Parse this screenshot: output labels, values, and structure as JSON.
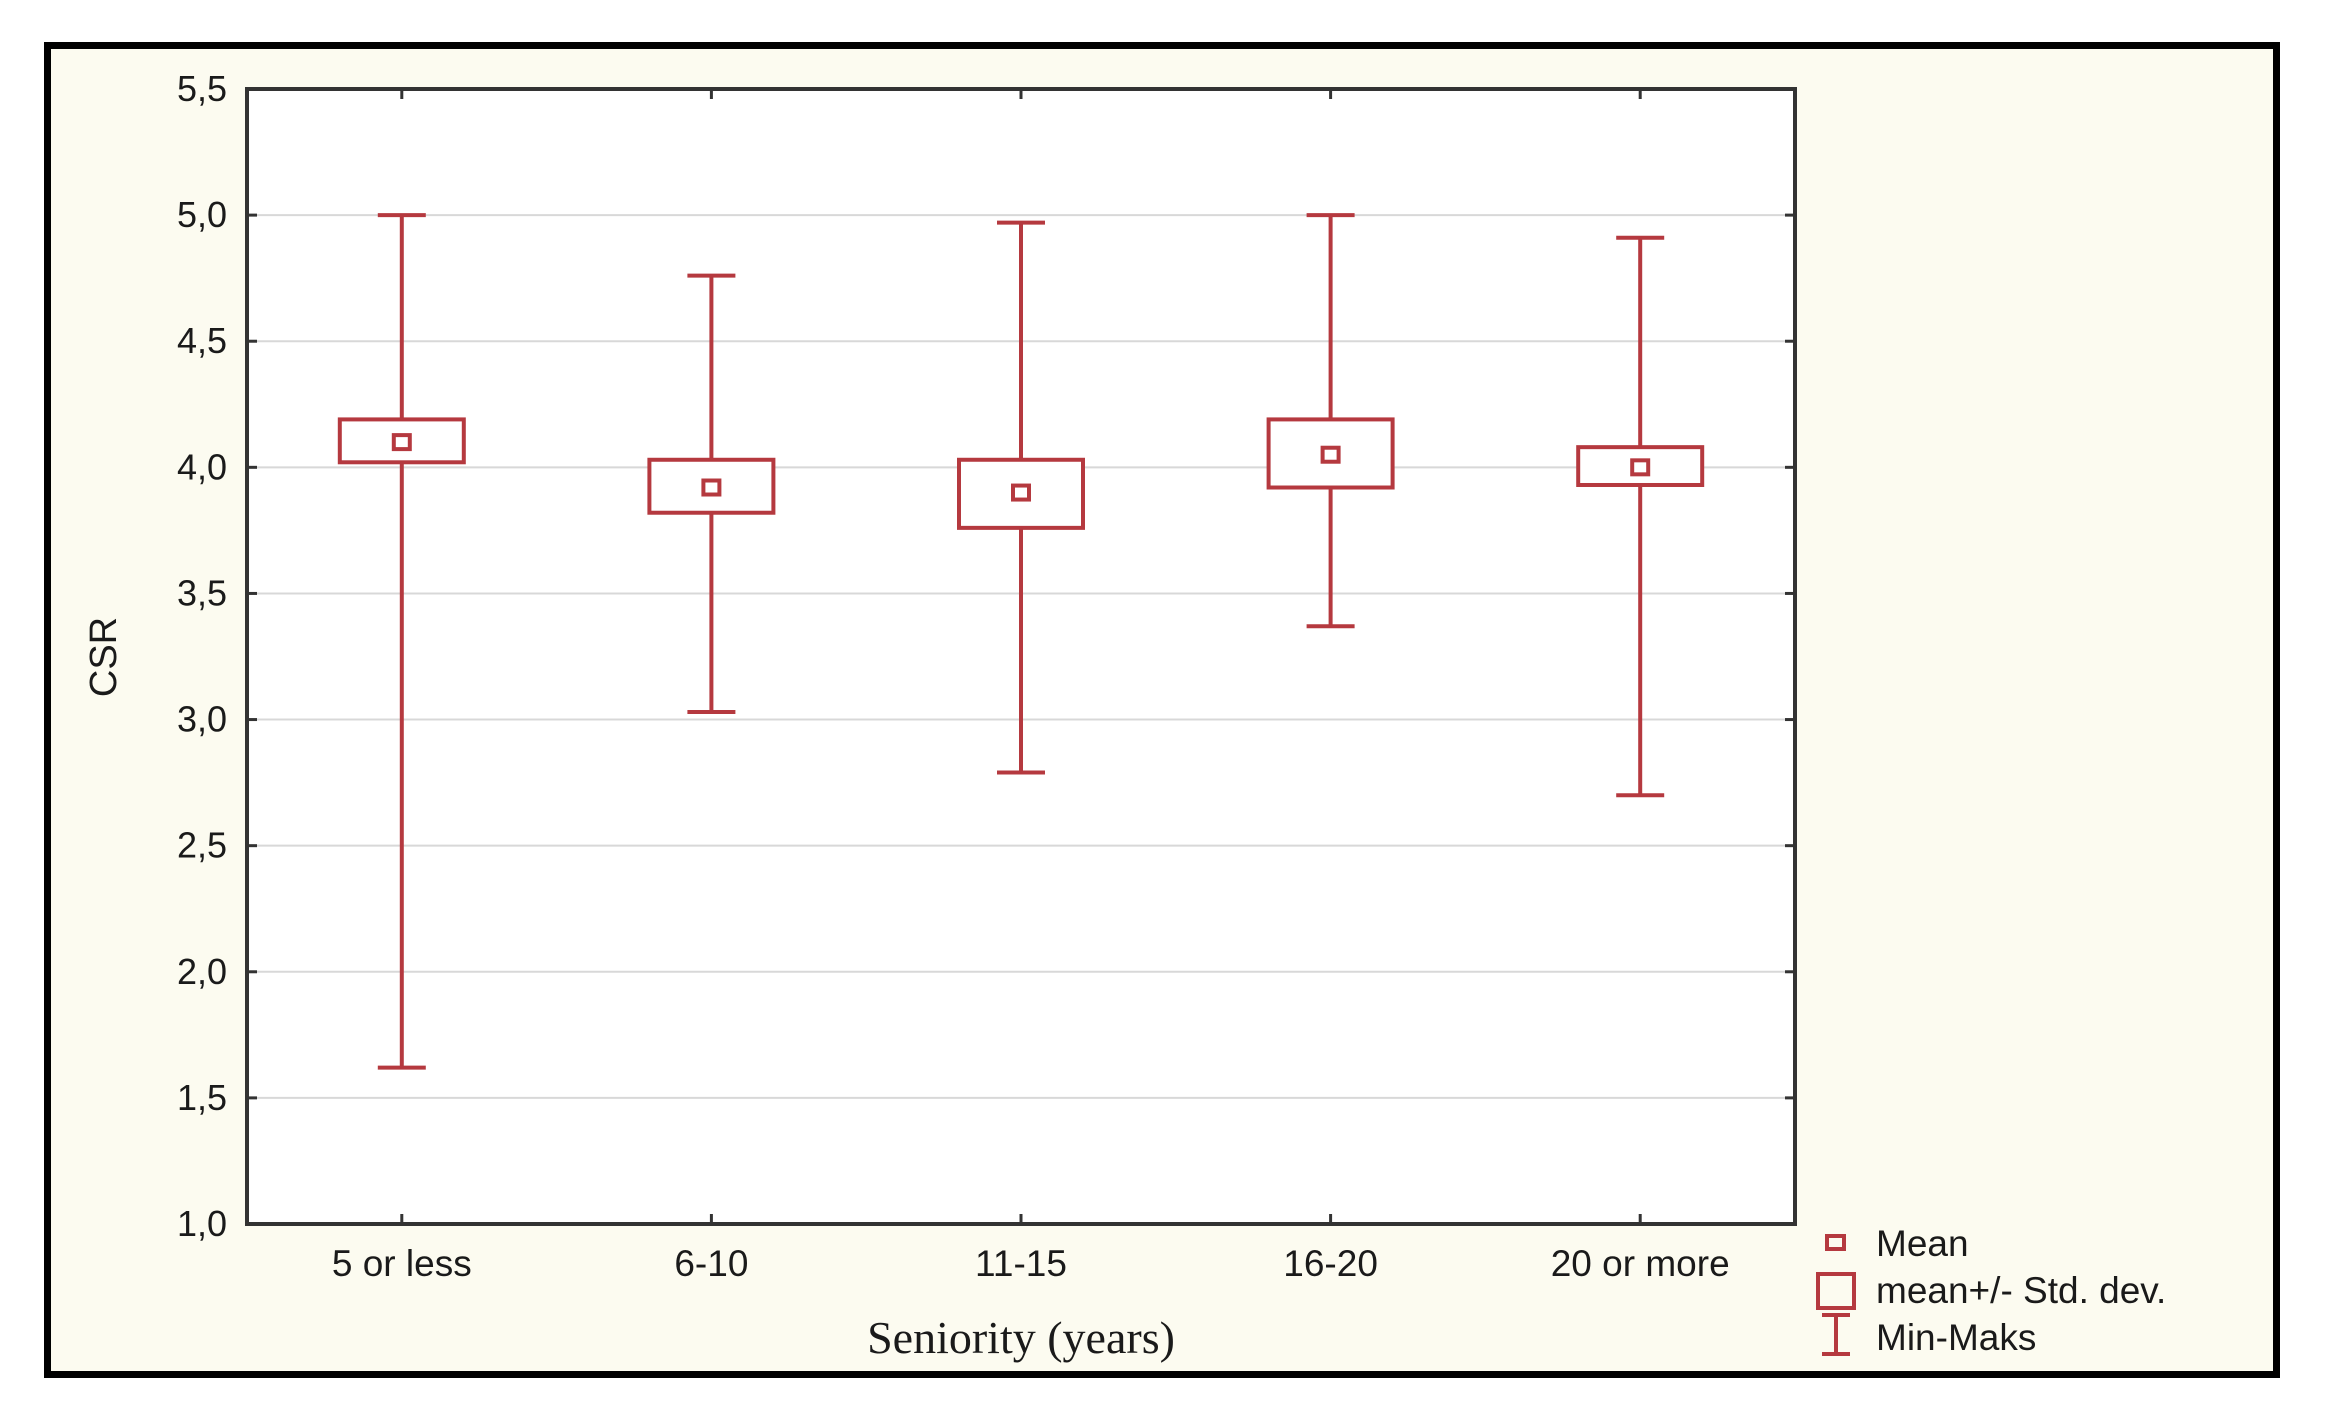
{
  "chart_data": {
    "type": "box",
    "xlabel": "Seniority (years)",
    "ylabel": "CSR",
    "ylim": [
      1.0,
      5.5
    ],
    "yticks": [
      "1,0",
      "1,5",
      "2,0",
      "2,5",
      "3,0",
      "3,5",
      "4,0",
      "4,5",
      "5,0",
      "5,5"
    ],
    "ytick_values": [
      1.0,
      1.5,
      2.0,
      2.5,
      3.0,
      3.5,
      4.0,
      4.5,
      5.0,
      5.5
    ],
    "grid": true,
    "categories": [
      "5 or less",
      "6-10",
      "11-15",
      "16-20",
      "20 or more"
    ],
    "mean": [
      4.1,
      3.92,
      3.9,
      4.05,
      4.0
    ],
    "std_low": [
      4.02,
      3.82,
      3.76,
      3.92,
      3.93
    ],
    "std_high": [
      4.19,
      4.03,
      4.03,
      4.19,
      4.08
    ],
    "min": [
      1.62,
      3.03,
      2.79,
      3.37,
      2.7
    ],
    "max": [
      5.0,
      4.76,
      4.97,
      5.0,
      4.91
    ],
    "legend": {
      "position": "bottom-right",
      "mean_label": "Mean",
      "std_label": "mean+/- Std. dev.",
      "range_label": "Min-Maks"
    },
    "colors": {
      "series": "#b5393f",
      "axis": "#333333",
      "grid": "#d8d8d8",
      "background": "#fcfbf0"
    }
  }
}
